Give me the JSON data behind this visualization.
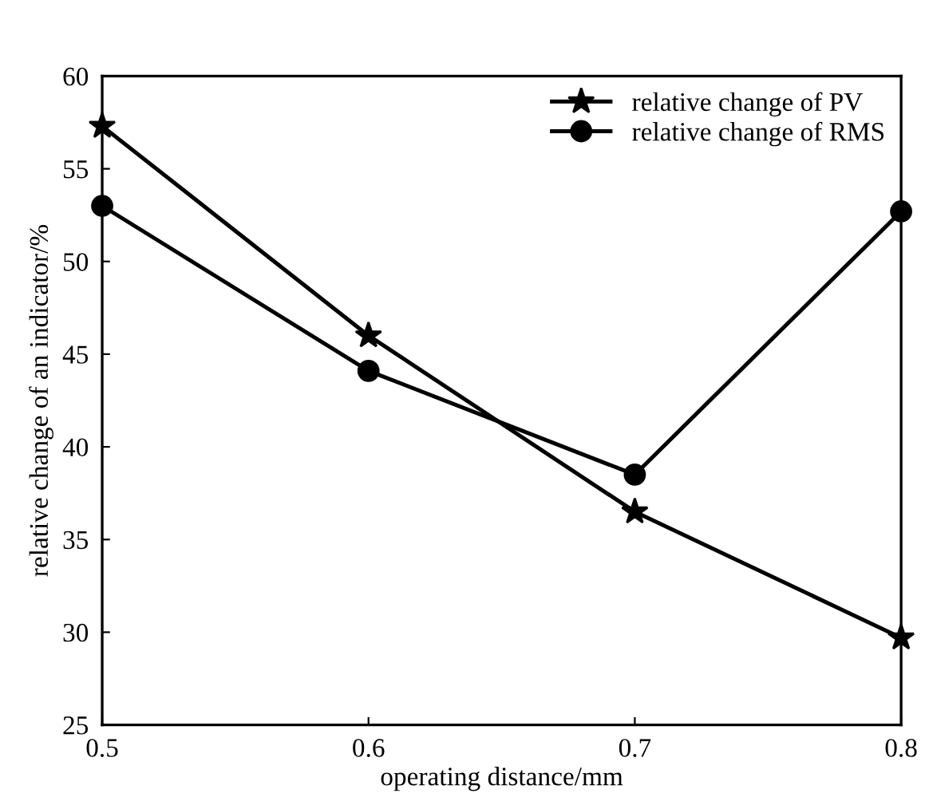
{
  "chart_data": {
    "type": "line",
    "xlabel": "operating distance/mm",
    "ylabel": "relative change of an indicator/%",
    "x": [
      0.5,
      0.6,
      0.7,
      0.8
    ],
    "series": [
      {
        "name": "relative change of PV",
        "color": "#000000",
        "marker": "star",
        "values": [
          57.3,
          46.0,
          36.5,
          29.7
        ]
      },
      {
        "name": "relative change of RMS",
        "color": "#000000",
        "marker": "circle",
        "values": [
          53.0,
          44.1,
          38.5,
          52.7
        ]
      }
    ],
    "xlim": [
      0.5,
      0.8
    ],
    "xticks": [
      0.5,
      0.6,
      0.7,
      0.8
    ],
    "ylim": [
      25,
      60
    ],
    "yticks": [
      25,
      30,
      35,
      40,
      45,
      50,
      55,
      60
    ],
    "grid": false,
    "legend": "top right",
    "line_style": "solid"
  }
}
